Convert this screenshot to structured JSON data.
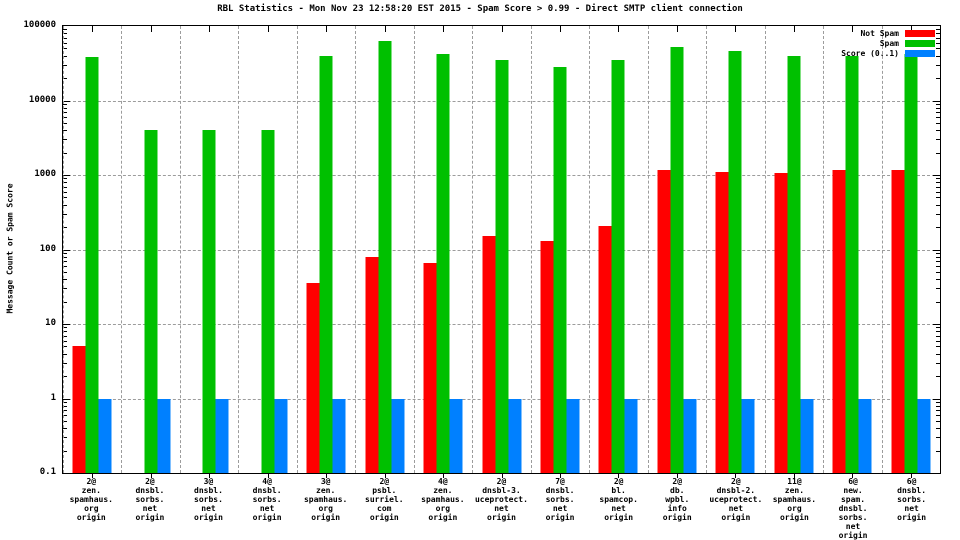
{
  "title": "RBL Statistics - Mon Nov 23 12:58:20 EST 2015 - Spam Score > 0.99 - Direct SMTP client connection",
  "y_axis": {
    "title": "Message Count or Spam Score",
    "tick_labels": [
      "100000",
      "10000",
      "1000",
      "100",
      "10",
      "1",
      "0.1"
    ]
  },
  "legend": {
    "position": "top-right",
    "items": [
      {
        "label": "Not Spam",
        "color": "#ff0000"
      },
      {
        "label": "Spam",
        "color": "#00c000"
      },
      {
        "label": "Score (0..1)",
        "color": "#0080ff"
      }
    ]
  },
  "chart_data": {
    "type": "bar",
    "title": "RBL Statistics - Mon Nov 23 12:58:20 EST 2015 - Spam Score > 0.99 - Direct SMTP client connection",
    "xlabel": "",
    "ylabel": "Message Count or Spam Score",
    "y_scale": "log",
    "ylim": [
      0.1,
      100000
    ],
    "grid": true,
    "legend_position": "top-right",
    "categories": [
      "2@zen.spamhaus.org origin",
      "2@dnsbl.sorbs.net origin",
      "3@dnsbl.sorbs.net origin",
      "4@dnsbl.sorbs.net origin",
      "3@zen.spamhaus.org origin",
      "2@psbl.surriel.com origin",
      "4@zen.spamhaus.org origin",
      "2@dnsbl-3.uceprotect.net origin",
      "7@dnsbl.sorbs.net origin",
      "2@bl.spamcop.net origin",
      "2@db.wpbl.info origin",
      "2@dnsbl-2.uceprotect.net origin",
      "11@zen.spamhaus.org origin",
      "6@new.spam.dnsbl.sorbs.net origin",
      "6@dnsbl.sorbs.net origin"
    ],
    "category_label_lines": [
      [
        "2@",
        "zen.",
        "spamhaus.",
        "org",
        "origin"
      ],
      [
        "2@",
        "dnsbl.",
        "sorbs.",
        "net",
        "origin"
      ],
      [
        "3@",
        "dnsbl.",
        "sorbs.",
        "net",
        "origin"
      ],
      [
        "4@",
        "dnsbl.",
        "sorbs.",
        "net",
        "origin"
      ],
      [
        "3@",
        "zen.",
        "spamhaus.",
        "org",
        "origin"
      ],
      [
        "2@",
        "psbl.",
        "surriel.",
        "com",
        "origin"
      ],
      [
        "4@",
        "zen.",
        "spamhaus.",
        "org",
        "origin"
      ],
      [
        "2@",
        "dnsbl-3.",
        "uceprotect.",
        "net",
        "origin"
      ],
      [
        "7@",
        "dnsbl.",
        "sorbs.",
        "net",
        "origin"
      ],
      [
        "2@",
        "bl.",
        "spamcop.",
        "net",
        "origin"
      ],
      [
        "2@",
        "db.",
        "wpbl.",
        "info",
        "origin"
      ],
      [
        "2@",
        "dnsbl-2.",
        "uceprotect.",
        "net",
        "origin"
      ],
      [
        "11@",
        "zen.",
        "spamhaus.",
        "org",
        "origin"
      ],
      [
        "6@",
        "new.",
        "spam.",
        "dnsbl.",
        "sorbs.",
        "net",
        "origin"
      ],
      [
        "6@",
        "dnsbl.",
        "sorbs.",
        "net",
        "origin"
      ]
    ],
    "series": [
      {
        "name": "Not Spam",
        "color": "#ff0000",
        "values": [
          5,
          null,
          null,
          null,
          35,
          80,
          65,
          150,
          130,
          210,
          1150,
          1100,
          1050,
          1150,
          1150
        ]
      },
      {
        "name": "Spam",
        "color": "#00c000",
        "values": [
          38000,
          4000,
          4000,
          4000,
          40000,
          62000,
          42000,
          35000,
          28000,
          35000,
          53000,
          46000,
          39000,
          40000,
          42000
        ]
      },
      {
        "name": "Score (0..1)",
        "color": "#0080ff",
        "values": [
          1,
          1,
          1,
          1,
          1,
          1,
          1,
          1,
          1,
          1,
          1,
          1,
          1,
          1,
          1
        ]
      }
    ]
  }
}
